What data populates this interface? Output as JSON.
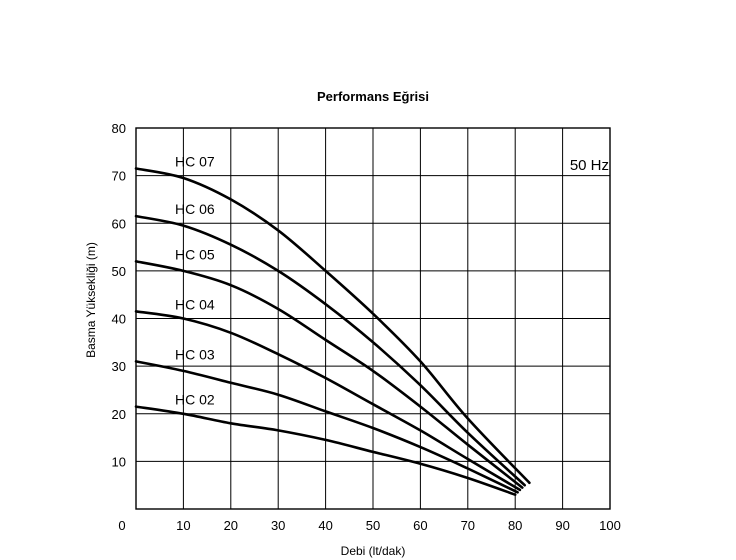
{
  "chart_data": {
    "type": "line",
    "title": "Performans Eğrisi",
    "xlabel": "Debi (lt/dak)",
    "ylabel": "Basma Yüksekliği (m)",
    "annotation": "50 Hz",
    "xlim": [
      0,
      100
    ],
    "ylim": [
      0,
      80
    ],
    "x_ticks": [
      0,
      10,
      20,
      30,
      40,
      50,
      60,
      70,
      80,
      90,
      100
    ],
    "y_ticks": [
      10,
      20,
      30,
      40,
      50,
      60,
      70,
      80
    ],
    "grid": true,
    "series": [
      {
        "name": "HC 02",
        "x": [
          0,
          10,
          20,
          30,
          40,
          50,
          60,
          70,
          80
        ],
        "y": [
          21.5,
          20,
          18,
          16.5,
          14.5,
          12,
          9.5,
          6.5,
          3
        ]
      },
      {
        "name": "HC 03",
        "x": [
          0,
          10,
          20,
          30,
          40,
          50,
          60,
          70,
          80.5
        ],
        "y": [
          31,
          29,
          26.5,
          24,
          20.5,
          17,
          13,
          8.5,
          3.5
        ]
      },
      {
        "name": "HC 04",
        "x": [
          0,
          10,
          20,
          30,
          40,
          50,
          60,
          70,
          81
        ],
        "y": [
          41.5,
          40,
          37,
          32.5,
          27.5,
          22,
          16.5,
          10.5,
          4
        ]
      },
      {
        "name": "HC 05",
        "x": [
          0,
          10,
          20,
          30,
          40,
          50,
          60,
          70,
          81.5
        ],
        "y": [
          52,
          50,
          47,
          42,
          35.5,
          29,
          21.5,
          13.5,
          4.5
        ]
      },
      {
        "name": "HC 06",
        "x": [
          0,
          10,
          20,
          30,
          40,
          50,
          60,
          70,
          82
        ],
        "y": [
          61.5,
          59.5,
          55.5,
          50,
          43,
          35,
          26,
          16,
          5
        ]
      },
      {
        "name": "HC 07",
        "x": [
          0,
          10,
          20,
          30,
          40,
          50,
          60,
          70,
          83
        ],
        "y": [
          71.5,
          69.5,
          65,
          58.5,
          50,
          41,
          31,
          19,
          5.5
        ]
      }
    ]
  }
}
